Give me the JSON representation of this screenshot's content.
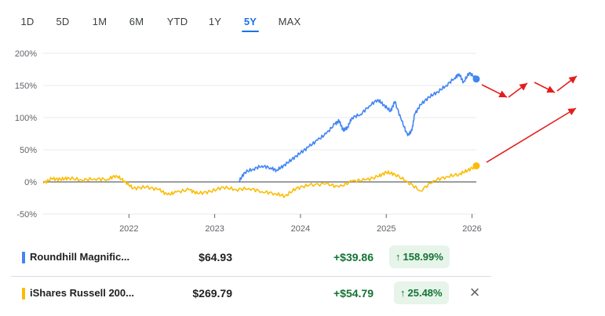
{
  "range_tabs": {
    "items": [
      "1D",
      "5D",
      "1M",
      "6M",
      "YTD",
      "1Y",
      "5Y",
      "MAX"
    ],
    "active": "5Y"
  },
  "chart_data": {
    "type": "line",
    "x_ticks": [
      "2022",
      "2023",
      "2024",
      "2025",
      "2026"
    ],
    "y_ticks": [
      "200%",
      "150%",
      "100%",
      "50%",
      "0%",
      "-50%"
    ],
    "ylim": [
      -50,
      200
    ],
    "xlim": [
      2021.0,
      2026.05
    ],
    "series": [
      {
        "name": "Roundhill Magnific...",
        "color": "#4285f4",
        "x": [
          2023.28,
          2023.35,
          2023.45,
          2023.55,
          2023.65,
          2023.72,
          2023.8,
          2023.9,
          2024.0,
          2024.1,
          2024.2,
          2024.3,
          2024.4,
          2024.45,
          2024.5,
          2024.55,
          2024.6,
          2024.7,
          2024.8,
          2024.9,
          2024.97,
          2025.05,
          2025.1,
          2025.18,
          2025.25,
          2025.3,
          2025.33,
          2025.4,
          2025.5,
          2025.6,
          2025.7,
          2025.8,
          2025.85,
          2025.9,
          2025.97,
          2026.05
        ],
        "y": [
          0,
          15,
          20,
          25,
          22,
          18,
          25,
          35,
          45,
          55,
          65,
          75,
          90,
          95,
          80,
          85,
          100,
          105,
          118,
          128,
          120,
          110,
          125,
          95,
          72,
          80,
          105,
          120,
          132,
          140,
          150,
          162,
          168,
          155,
          170,
          160
        ]
      },
      {
        "name": "iShares Russell 200...",
        "color": "#fbbc04",
        "x": [
          2021.0,
          2021.1,
          2021.2,
          2021.3,
          2021.45,
          2021.6,
          2021.75,
          2021.85,
          2021.95,
          2022.05,
          2022.2,
          2022.35,
          2022.45,
          2022.55,
          2022.7,
          2022.8,
          2022.95,
          2023.1,
          2023.25,
          2023.4,
          2023.55,
          2023.7,
          2023.82,
          2023.95,
          2024.1,
          2024.3,
          2024.45,
          2024.6,
          2024.75,
          2024.9,
          2025.0,
          2025.1,
          2025.25,
          2025.4,
          2025.55,
          2025.7,
          2025.85,
          2025.95,
          2026.05
        ],
        "y": [
          -2,
          5,
          4,
          6,
          3,
          5,
          4,
          10,
          1,
          -10,
          -8,
          -12,
          -20,
          -16,
          -12,
          -18,
          -15,
          -8,
          -12,
          -10,
          -15,
          -18,
          -22,
          -10,
          -5,
          -3,
          -8,
          1,
          3,
          8,
          15,
          12,
          0,
          -14,
          2,
          8,
          12,
          18,
          25
        ]
      }
    ],
    "title": "",
    "xlabel": "",
    "ylabel": "",
    "grid": true,
    "legend": "below chart as table rows"
  },
  "annotation_color": "#e51c1c",
  "holdings": [
    {
      "swatch": "#4285f4",
      "name": "Roundhill Magnific...",
      "price": "$64.93",
      "change": "+$39.86",
      "pct": "158.99%",
      "arrow": "↑"
    },
    {
      "swatch": "#fbbc04",
      "name": "iShares Russell 200...",
      "price": "$269.79",
      "change": "+$54.79",
      "pct": "25.48%",
      "arrow": "↑",
      "close_icon": "×"
    }
  ]
}
